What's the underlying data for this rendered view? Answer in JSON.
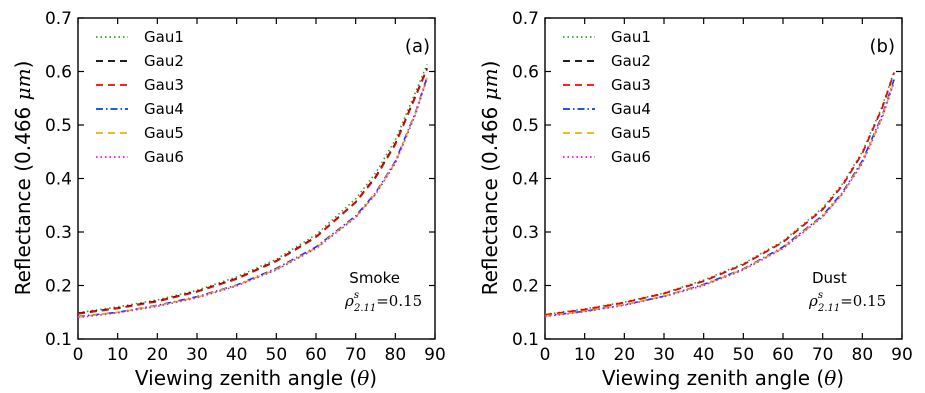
{
  "chart_data": [
    {
      "type": "line",
      "panel_label": "(a)",
      "annotation": {
        "name": "Smoke",
        "param": "ρ^s_2.11 = 0.15",
        "rho": "ρ",
        "sup": "s",
        "sub": "2.11",
        "value": "=0.15"
      },
      "xlabel": "Viewing zenith angle (θ)",
      "xlabel_text": "Viewing zenith angle (",
      "xlabel_symbol": "θ",
      "xlabel_close": ")",
      "ylabel": "Reflectance (0.466 μm)",
      "ylabel_text": "Reflectance (0.466 ",
      "ylabel_unit": "μm",
      "ylabel_close": ")",
      "xlim": [
        0,
        90
      ],
      "ylim": [
        0.1,
        0.7
      ],
      "xticks": [
        "0",
        "10",
        "20",
        "30",
        "40",
        "50",
        "60",
        "70",
        "80",
        "90"
      ],
      "yticks": [
        "0.1",
        "0.2",
        "0.3",
        "0.4",
        "0.5",
        "0.6",
        "0.7"
      ],
      "legend_position": "top-left",
      "x": [
        0,
        10,
        20,
        30,
        40,
        50,
        60,
        70,
        75,
        80,
        85,
        88
      ],
      "series": [
        {
          "name": "Gau1",
          "color": "#2ca02c",
          "dash": "dotted",
          "values": [
            0.149,
            0.16,
            0.173,
            0.191,
            0.216,
            0.249,
            0.295,
            0.362,
            0.41,
            0.472,
            0.56,
            0.613
          ]
        },
        {
          "name": "Gau2",
          "color": "#000000",
          "dash": "dashed",
          "values": [
            0.148,
            0.158,
            0.171,
            0.189,
            0.213,
            0.246,
            0.291,
            0.356,
            0.403,
            0.465,
            0.553,
            0.606
          ]
        },
        {
          "name": "Gau3",
          "color": "#ff0000",
          "dash": "dashed",
          "values": [
            0.147,
            0.157,
            0.17,
            0.188,
            0.212,
            0.245,
            0.29,
            0.355,
            0.401,
            0.463,
            0.551,
            0.604
          ]
        },
        {
          "name": "Gau4",
          "color": "#0044dd",
          "dash": "dashdot",
          "values": [
            0.142,
            0.15,
            0.163,
            0.179,
            0.201,
            0.232,
            0.272,
            0.33,
            0.373,
            0.432,
            0.522,
            0.59
          ]
        },
        {
          "name": "Gau5",
          "color": "#e6b800",
          "dash": "dashed",
          "values": [
            0.141,
            0.15,
            0.162,
            0.178,
            0.2,
            0.23,
            0.27,
            0.328,
            0.371,
            0.43,
            0.52,
            0.588
          ]
        },
        {
          "name": "Gau6",
          "color": "#ff00ff",
          "dash": "dotted",
          "values": [
            0.14,
            0.149,
            0.161,
            0.177,
            0.199,
            0.229,
            0.269,
            0.327,
            0.37,
            0.428,
            0.518,
            0.586
          ]
        }
      ]
    },
    {
      "type": "line",
      "panel_label": "(b)",
      "annotation": {
        "name": "Dust",
        "param": "ρ^s_2.11 = 0.15",
        "rho": "ρ",
        "sup": "s",
        "sub": "2.11",
        "value": "=0.15"
      },
      "xlabel": "Viewing zenith angle (θ)",
      "xlabel_text": "Viewing zenith angle (",
      "xlabel_symbol": "θ",
      "xlabel_close": ")",
      "ylabel": "Reflectance (0.466 μm)",
      "ylabel_text": "Reflectance (0.466 ",
      "ylabel_unit": "μm",
      "ylabel_close": ")",
      "xlim": [
        0,
        90
      ],
      "ylim": [
        0.1,
        0.7
      ],
      "xticks": [
        "0",
        "10",
        "20",
        "30",
        "40",
        "50",
        "60",
        "70",
        "80",
        "90"
      ],
      "yticks": [
        "0.1",
        "0.2",
        "0.3",
        "0.4",
        "0.5",
        "0.6",
        "0.7"
      ],
      "legend_position": "top-left",
      "x": [
        0,
        10,
        20,
        30,
        40,
        50,
        60,
        70,
        75,
        80,
        85,
        88
      ],
      "series": [
        {
          "name": "Gau1",
          "color": "#2ca02c",
          "dash": "dotted",
          "values": [
            0.146,
            0.156,
            0.169,
            0.186,
            0.21,
            0.241,
            0.283,
            0.345,
            0.39,
            0.45,
            0.535,
            0.6
          ]
        },
        {
          "name": "Gau2",
          "color": "#000000",
          "dash": "dashed",
          "values": [
            0.145,
            0.155,
            0.168,
            0.185,
            0.208,
            0.239,
            0.281,
            0.342,
            0.387,
            0.447,
            0.532,
            0.598
          ]
        },
        {
          "name": "Gau3",
          "color": "#ff0000",
          "dash": "dashed",
          "values": [
            0.145,
            0.155,
            0.168,
            0.185,
            0.208,
            0.239,
            0.281,
            0.342,
            0.387,
            0.447,
            0.532,
            0.598
          ]
        },
        {
          "name": "Gau4",
          "color": "#0044dd",
          "dash": "dashdot",
          "values": [
            0.143,
            0.152,
            0.164,
            0.18,
            0.202,
            0.231,
            0.272,
            0.331,
            0.374,
            0.433,
            0.518,
            0.585
          ]
        },
        {
          "name": "Gau5",
          "color": "#e6b800",
          "dash": "dashed",
          "values": [
            0.143,
            0.152,
            0.164,
            0.18,
            0.201,
            0.23,
            0.27,
            0.329,
            0.372,
            0.43,
            0.515,
            0.582
          ]
        },
        {
          "name": "Gau6",
          "color": "#ff00ff",
          "dash": "dotted",
          "values": [
            0.142,
            0.151,
            0.163,
            0.179,
            0.2,
            0.229,
            0.269,
            0.328,
            0.371,
            0.428,
            0.513,
            0.58
          ]
        }
      ]
    }
  ]
}
